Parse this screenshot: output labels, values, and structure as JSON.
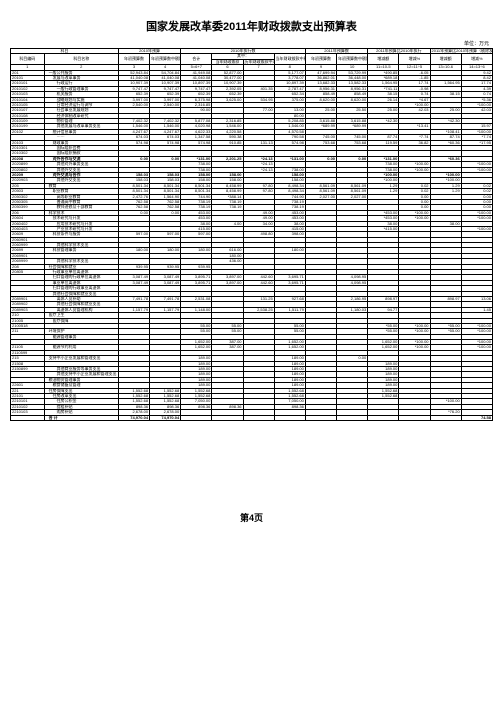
{
  "title": "国家发展改革委2011年财政拨款支出预算表",
  "unit_label": "单位：万元",
  "page_number": "第4页",
  "colors": {
    "border": "#000000",
    "background": "#ffffff",
    "text": "#000000"
  },
  "header": {
    "row1": [
      "科目",
      "",
      "2010年预算",
      "",
      "2010年执行数",
      "",
      "",
      "",
      "",
      "2011年预算数",
      "",
      "2011年预算比2010年执行",
      "",
      "2011年预算比2010年预算（剔除发改委支出数）",
      ""
    ],
    "row2": [
      "科目编码",
      "科目名称",
      "年初预算数",
      "年初预算数中剔除发改委基建支出",
      "合计",
      "其中：",
      "",
      "当年财政拨款中剔除发改委基建投资数",
      "年初预算数",
      "年初预算数中剔除发改委基建支出",
      "增减额",
      "增减%",
      "增减额",
      "增减%"
    ],
    "row3": [
      "",
      "",
      "",
      "",
      "",
      "当年财政拨款",
      "历年财政拨款中未列支数",
      "上年结转",
      "",
      "",
      "",
      "",
      "",
      ""
    ],
    "numline": [
      "1",
      "2",
      "3",
      "4",
      "5=6+7",
      "6",
      "7",
      "8",
      "9",
      "10",
      "11=10-5",
      "12=11÷5",
      "13=10-6",
      "14=13÷6"
    ]
  },
  "rows": [
    {
      "lvl": 0,
      "code": "201",
      "name": "一般公共服务",
      "d": [
        "52,943.84",
        "54,704.84",
        "41,949.08",
        "52,877.00",
        "",
        "5,177.07",
        "47,699.94",
        "53,729.99",
        "*490.85",
        "-6.05",
        "",
        "9.42"
      ]
    },
    {
      "lvl": 1,
      "code": "20101",
      "name": "发展与改革事务",
      "d": [
        "41,040.08",
        "41,040.08",
        "41,040.08",
        "30,477.00",
        "",
        "3,778.07",
        "36,862.01",
        "36,448.00",
        "*689.18",
        "-1.85",
        "",
        "8.42"
      ]
    },
    {
      "lvl": 2,
      "code": "2010101",
      "name": "行政运行",
      "d": [
        "10,907.39",
        "10,907.39",
        "10,897.39",
        "10,907.39",
        "",
        "10,897.39",
        "13,682.33",
        "13,582.33",
        "1,564.95",
        "17.74",
        "1,564.95",
        "17.74"
      ]
    },
    {
      "lvl": 2,
      "code": "2010102",
      "name": "一般行政管理事务",
      "d": [
        "9,747.47",
        "9,747.47",
        "9,747.47",
        "2,392.05",
        "401.35",
        "2,787.47",
        "8,956.31",
        "8,956.31",
        "*741.11",
        "-0.98",
        "",
        "4.39"
      ]
    },
    {
      "lvl": 2,
      "code": "2010103",
      "name": "机关服务",
      "d": [
        "652.39",
        "652.39",
        "652.39",
        "652.39",
        "",
        "652.34",
        "858.49",
        "858.49",
        "38.15",
        "0.74",
        "38.15",
        "0.74"
      ]
    },
    {
      "lvl": 2,
      "code": "2010104",
      "name": "战略规划与实施",
      "d": [
        "3,997.00",
        "3,997.00",
        "6,375.98",
        "3,625.00",
        "534.95",
        "375.00",
        "8,620.00",
        "8,620.00",
        "26.14",
        "*4.67",
        "",
        "*5.36"
      ]
    },
    {
      "lvl": 2,
      "code": "2010105",
      "name": "日常经济运行与调节",
      "d": [
        "2,540.00",
        "2,540.00",
        "2,316.85",
        "",
        "",
        "",
        "",
        "",
        "",
        "*100.00",
        "",
        "*100.00"
      ]
    },
    {
      "lvl": 2,
      "code": "2010107",
      "name": "社会事业发展规划",
      "d": [
        "",
        "",
        "90.00",
        "",
        "77.00",
        "13.00",
        "25.00",
        "25.50",
        "25.00",
        "42.03",
        "25.00",
        "42.03"
      ]
    },
    {
      "lvl": 2,
      "code": "2010108",
      "name": "经济体制改革研究",
      "d": [
        "",
        "",
        "",
        "",
        "",
        "80.00",
        "",
        "",
        "",
        "",
        "",
        ""
      ]
    },
    {
      "lvl": 2,
      "code": "2010109",
      "name": "物价管理",
      "d": [
        "7,402.32",
        "7,402.32",
        "5,877.08",
        "2,316.85",
        "",
        "5,208.85",
        "3,615.88",
        "3,615.88",
        "*42.30",
        "",
        "*42.30",
        ""
      ]
    },
    {
      "lvl": 2,
      "code": "2010199",
      "name": "其他发展与改革事务支出",
      "d": [
        "1,546.00",
        "1,546.00",
        "4,020.98",
        "1,546.00",
        "",
        "1,546.00",
        "*689.99",
        "*689.99",
        "",
        "*13.41",
        "",
        "15.97"
      ]
    },
    {
      "lvl": 1,
      "code": "20102",
      "name": "统计信息事务",
      "d": [
        "4,247.67",
        "4,247.67",
        "4,622.33",
        "4,220.58",
        "",
        "4,570.58",
        "",
        "",
        "",
        "",
        "*108.41",
        "*100.00"
      ]
    },
    {
      "lvl": 2,
      "code": "",
      "name": "······",
      "d": [
        "674.03",
        "674.03",
        "1,347.58",
        "590.38",
        "",
        "790.58",
        "745.00",
        "745.00",
        "87.74",
        "*7.74",
        "87.74",
        "*7.74"
      ]
    },
    {
      "lvl": 1,
      "code": "20103",
      "name": "财政事务",
      "d": [
        "574.98",
        "574.98",
        "574.98",
        "910.85",
        "131.13",
        "574.98",
        "753.68",
        "753.68",
        "119.59",
        "36.82",
        "*60.36",
        "*17.95"
      ]
    },
    {
      "lvl": 2,
      "code": "2010301",
      "name": "国际组织会费",
      "d": [
        "",
        "",
        "",
        "",
        "",
        "",
        "",
        "",
        "",
        "",
        "",
        ""
      ]
    },
    {
      "lvl": 2,
      "code": "2010302",
      "name": "国际组织捐款",
      "d": [
        "",
        "",
        "",
        "",
        "",
        "",
        "",
        "",
        "",
        "",
        "",
        ""
      ]
    },
    {
      "lvl": 1,
      "code": "20208",
      "name": "对外合作与交流",
      "d": [
        "0.00",
        "0.00",
        "*131.00",
        "2,201.25",
        "*24.13",
        "*131.00",
        "0.00",
        "0.00",
        "*131.00",
        "",
        "*60.36",
        ""
      ]
    },
    {
      "lvl": 2,
      "code": "2020899",
      "name": "其他对外事务支出",
      "d": [
        "",
        "",
        "738.00",
        "",
        "*24.13",
        "",
        "",
        "",
        "738.00",
        "*100.00",
        "",
        "*100.00"
      ]
    },
    {
      "lvl": 2,
      "code": "2020802",
      "name": "其他外交支出",
      "d": [
        "",
        "",
        "738.00",
        "",
        "*24.13",
        "738.00",
        "",
        "",
        "738.00",
        "*100.00",
        "",
        "*100.00"
      ]
    },
    {
      "lvl": 1,
      "code": "20209",
      "name": "对外交流与合作",
      "d": [
        "158.03",
        "158.03",
        "158.00",
        "158.00",
        "",
        "158.00",
        "",
        "",
        "*100.00",
        "",
        "*100.00",
        ""
      ]
    },
    {
      "lvl": 2,
      "code": "2020903",
      "name": "其他外交支出",
      "d": [
        "158.03",
        "158.03",
        "158.00",
        "158.00",
        "",
        "158.00",
        "",
        "",
        "*100.00",
        "",
        "*100.00",
        ""
      ]
    },
    {
      "lvl": 0,
      "code": "205",
      "name": "教育",
      "d": [
        "8,501.34",
        "8,501.34",
        "8,501.34",
        "8,458.99",
        "97.80",
        "8,498.34",
        "8,561.09",
        "8,561.09",
        "1.29",
        "0.02",
        "1.29",
        "0.02"
      ]
    },
    {
      "lvl": 1,
      "code": "20503",
      "name": "职业教育",
      "d": [
        "8,501.34",
        "8,501.34",
        "8,501.34",
        "8,458.99",
        "97.80",
        "8,498.34",
        "8,561.09",
        "8,561.09",
        "1.29",
        "0.02",
        "1.29",
        "0.02"
      ]
    },
    {
      "lvl": 2,
      "code": "2050302",
      "name": "高等职业教育",
      "d": [
        "2,472.76",
        "1,564.90",
        "744.90",
        "*388.14",
        "",
        "744.90",
        "2,027.00",
        "2,027.00",
        "",
        "0.00",
        "",
        "0.00"
      ]
    },
    {
      "lvl": 2,
      "code": "2050305",
      "name": "普通高中教育",
      "d": [
        "762.58",
        "762.58",
        "738.19",
        "738.19",
        "",
        "738.19",
        "",
        "",
        "",
        "0.00",
        "",
        "0.00"
      ]
    },
    {
      "lvl": 2,
      "code": "2050399",
      "name": "教师进修及干部教育",
      "d": [
        "762.58",
        "762.58",
        "738.19",
        "738.19",
        "",
        "738.19",
        "",
        "",
        "",
        "0.00",
        "",
        "0.00"
      ]
    },
    {
      "lvl": 0,
      "code": "206",
      "name": "科学技术",
      "d": [
        "0.00",
        "0.00",
        "453.00",
        "",
        "49.00",
        "453.00",
        "",
        "",
        "*453.00",
        "*100.00",
        "",
        "*100.00"
      ]
    },
    {
      "lvl": 1,
      "code": "20604",
      "name": "技术研究与开发",
      "d": [
        "",
        "",
        "453.00",
        "",
        "49.00",
        "453.00",
        "",
        "",
        "*453.00",
        "*100.00",
        "",
        "*100.00"
      ]
    },
    {
      "lvl": 2,
      "code": "2060402",
      "name": "应用技术研究与开发",
      "d": [
        "",
        "",
        "38.00",
        "4.00",
        "34.00",
        "38.00",
        "",
        "",
        "38.00",
        "",
        "38.00",
        ""
      ]
    },
    {
      "lvl": 2,
      "code": "2060403",
      "name": "产业技术研究与开发",
      "d": [
        "",
        "",
        "415.00",
        "",
        "",
        "415.00",
        "",
        "",
        "*415.00",
        "",
        "",
        "*100.00"
      ]
    },
    {
      "lvl": 1,
      "code": "20609",
      "name": "科技条件与服务",
      "d": [
        "597.00",
        "597.00",
        "597.00",
        "",
        "498.80",
        "398.00",
        "",
        "",
        "",
        "",
        "",
        ""
      ]
    },
    {
      "lvl": 2,
      "code": "2060901",
      "name": "",
      "d": [
        "",
        "",
        "",
        "",
        "",
        "",
        "",
        "",
        "",
        "",
        "",
        ""
      ]
    },
    {
      "lvl": 2,
      "code": "2060999",
      "name": "其他科学技术支出",
      "d": [
        "",
        "",
        "",
        "",
        "",
        "",
        "",
        "",
        "",
        "",
        "",
        ""
      ]
    },
    {
      "lvl": 1,
      "code": "20699",
      "name": "科技管理事务",
      "d": [
        "180.00",
        "180.00",
        "180.00",
        "616.00",
        "",
        "180.00",
        "",
        "",
        "",
        "",
        "",
        ""
      ]
    },
    {
      "lvl": 2,
      "code": "2069901",
      "name": "",
      "d": [
        "",
        "",
        "",
        "180.00",
        "",
        "",
        "",
        "",
        "",
        "",
        "",
        ""
      ]
    },
    {
      "lvl": 2,
      "code": "2069999",
      "name": "其他科学技术支出",
      "d": [
        "",
        "",
        "",
        "436.00",
        "",
        "",
        "",
        "",
        "",
        "",
        "",
        ""
      ]
    },
    {
      "lvl": 0,
      "code": "208",
      "name": "社会保障和就业",
      "d": [
        "939.95",
        "939.95",
        "939.95",
        "",
        "",
        "",
        "",
        "",
        "",
        "",
        "",
        ""
      ]
    },
    {
      "lvl": 1,
      "code": "20805",
      "name": "行政事业单位离退休",
      "d": [
        "",
        "",
        "",
        "",
        "",
        "",
        "",
        "",
        "",
        "",
        "",
        ""
      ]
    },
    {
      "lvl": 1,
      "code": "",
      "name": "归口管理的行政单位离退休",
      "d": [
        "3,087.49",
        "3,087.49",
        "3,895.71",
        "3,897.00",
        "442.60",
        "3,695.71",
        "",
        "4,098.95",
        "",
        "",
        "",
        ""
      ]
    },
    {
      "lvl": 1,
      "code": "",
      "name": "事业单位离退休",
      "d": [
        "3,087.49",
        "3,087.49",
        "3,895.71",
        "3,897.00",
        "442.60",
        "3,695.71",
        "",
        "4,098.95",
        "",
        "",
        "",
        ""
      ]
    },
    {
      "lvl": 1,
      "code": "",
      "name": "归口管理的行政事业离退休",
      "d": [
        "",
        "",
        "",
        "",
        "",
        "",
        "",
        "",
        "",
        "",
        "",
        ""
      ]
    },
    {
      "lvl": 1,
      "code": "",
      "name": "其他社会保障和就业支出",
      "d": [
        "",
        "",
        "",
        "",
        "",
        "",
        "",
        "",
        "",
        "",
        "",
        ""
      ]
    },
    {
      "lvl": 2,
      "code": "2089901",
      "name": "离休人员补助",
      "d": [
        "7,491.78",
        "7,491.78",
        "2,531.08",
        "",
        "131.25",
        "927.68",
        "",
        "2,186.95",
        "898.97",
        "",
        "898.97",
        "13.06"
      ]
    },
    {
      "lvl": 2,
      "code": "2089902",
      "name": "其他社会保障和就业支出",
      "d": [
        "",
        "",
        "",
        "",
        "",
        "",
        "",
        "",
        "",
        "",
        "",
        ""
      ]
    },
    {
      "lvl": 2,
      "code": "2089903",
      "name": "离退休人员管理机构",
      "d": [
        "1,157.79",
        "1,157.79",
        "1,148.00",
        "",
        "2,538.25",
        "1,511.79",
        "",
        "1,180.03",
        "94.77",
        "",
        "",
        "1.45"
      ]
    },
    {
      "lvl": 0,
      "code": "210",
      "name": "医疗卫生",
      "d": [
        "",
        "",
        "",
        "",
        "",
        "",
        "",
        "",
        "",
        "",
        "",
        ""
      ]
    },
    {
      "lvl": 1,
      "code": "21005",
      "name": "医疗保障",
      "d": [
        "",
        "",
        "",
        "",
        "",
        "",
        "",
        "",
        "",
        "",
        "",
        ""
      ]
    },
    {
      "lvl": 2,
      "code": "2100518",
      "name": "",
      "d": [
        "",
        "",
        "55.00",
        "55.00",
        "",
        "55.00",
        "",
        "",
        "*55.00",
        "*100.00",
        "*55.00",
        "*100.00"
      ]
    },
    {
      "lvl": 0,
      "code": "211",
      "name": "环境保护",
      "d": [
        "",
        "",
        "55.00",
        "55.00",
        "",
        "55.00",
        "",
        "",
        "*55.00",
        "*100.00",
        "*55.00",
        "*100.00"
      ]
    },
    {
      "lvl": 1,
      "code": "",
      "name": "能源管理事务",
      "d": [
        "",
        "",
        "",
        "",
        "",
        "",
        "",
        "",
        "",
        "",
        "",
        ""
      ]
    },
    {
      "lvl": 2,
      "code": "",
      "name": "",
      "d": [
        "",
        "",
        "1,652.00",
        "387.00",
        "",
        "1,652.00",
        "",
        "",
        "1,652.00",
        "*100.00",
        "",
        "*100.00"
      ]
    },
    {
      "lvl": 1,
      "code": "21105",
      "name": "能源节约利用",
      "d": [
        "",
        "",
        "1,652.00",
        "387.00",
        "",
        "1,652.00",
        "",
        "",
        "1,652.00",
        "*100.00",
        "",
        "*100.00"
      ]
    },
    {
      "lvl": 2,
      "code": "2110599",
      "name": "",
      "d": [
        "",
        "",
        "",
        "",
        "",
        "",
        "",
        "",
        "",
        "",
        "",
        ""
      ]
    },
    {
      "lvl": 0,
      "code": "215",
      "name": "支持中小企业发展和管理支出",
      "d": [
        "",
        "",
        "189.00",
        "",
        "",
        "189.00",
        "",
        "0.00",
        "",
        "",
        "",
        ""
      ]
    },
    {
      "lvl": 1,
      "code": "21508",
      "name": "",
      "d": [
        "",
        "",
        "189.00",
        "",
        "",
        "189.00",
        "",
        "",
        "189.00",
        "",
        "",
        ""
      ]
    },
    {
      "lvl": 2,
      "code": "2150899",
      "name": "其他商业服务等事务支出",
      "d": [
        "",
        "",
        "189.00",
        "",
        "",
        "189.00",
        "",
        "",
        "189.00",
        "",
        "",
        ""
      ]
    },
    {
      "lvl": 2,
      "code": "",
      "name": "其他支持中小企业发展和管理支出",
      "d": [
        "",
        "",
        "189.00",
        "",
        "",
        "189.00",
        "",
        "",
        "189.00",
        "",
        "",
        ""
      ]
    },
    {
      "lvl": 0,
      "code": "",
      "name": "粮油物资管理事务",
      "d": [
        "",
        "",
        "189.00",
        "",
        "",
        "189.00",
        "",
        "",
        "189.00",
        "",
        "",
        ""
      ]
    },
    {
      "lvl": 1,
      "code": "22601",
      "name": "粮食储备及管理",
      "d": [
        "",
        "",
        "189.00",
        "",
        "",
        "189.00",
        "",
        "",
        "189.00",
        "",
        "",
        ""
      ]
    },
    {
      "lvl": 0,
      "code": "221",
      "name": "住房保障支出",
      "d": [
        "1,552.68",
        "1,552.68",
        "1,552.68",
        "",
        "",
        "1,552.68",
        "",
        "",
        "1,552.68",
        "",
        "",
        ""
      ]
    },
    {
      "lvl": 1,
      "code": "22101",
      "name": "住房改革支出",
      "d": [
        "1,552.68",
        "1,552.68",
        "1,552.68",
        "",
        "",
        "1,552.68",
        "",
        "",
        "1,552.68",
        "",
        "",
        ""
      ]
    },
    {
      "lvl": 2,
      "code": "2210101",
      "name": "住房公积金",
      "d": [
        "1,552.68",
        "1,552.68",
        "7,050.00",
        "",
        "",
        "7,050.00",
        "",
        "",
        "",
        "",
        "*100.00",
        ""
      ]
    },
    {
      "lvl": 2,
      "code": "2210102",
      "name": "提租补贴",
      "d": [
        "898.36",
        "898.36",
        "898.36",
        "898.36",
        "",
        "898.36",
        "",
        "",
        "",
        "",
        "",
        ""
      ]
    },
    {
      "lvl": 2,
      "code": "2210103",
      "name": "购房补贴",
      "d": [
        "2,678.00",
        "2,678.00",
        "",
        "",
        "",
        "",
        "",
        "",
        "",
        "",
        "*76.20",
        ""
      ]
    },
    {
      "lvl": 0,
      "code": "",
      "name": "合  计",
      "d": [
        "74,970.04",
        "74,970.04",
        "",
        "",
        "",
        "",
        "",
        "",
        "",
        "",
        "",
        "74.58"
      ]
    }
  ]
}
